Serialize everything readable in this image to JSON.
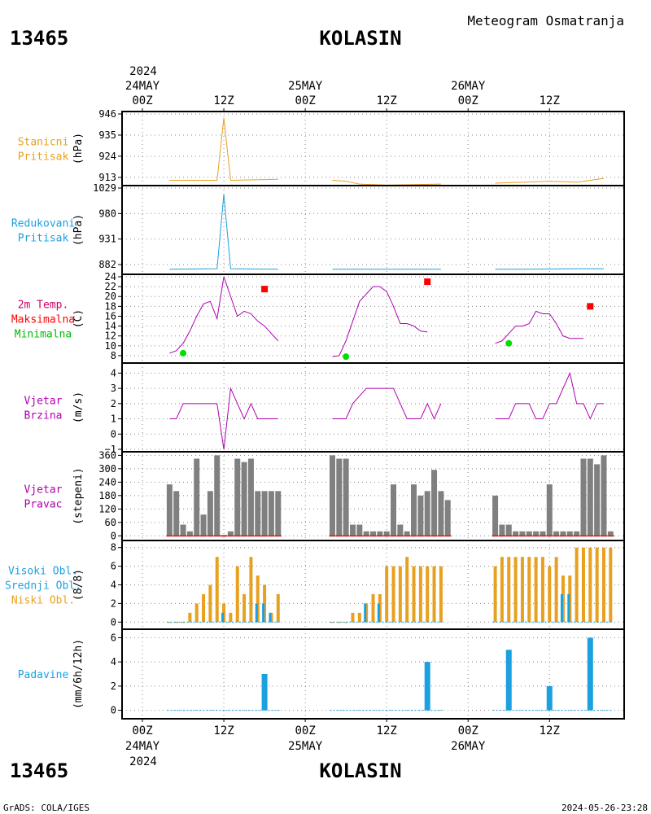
{
  "station": {
    "id": "13465",
    "name": "KOLASIN"
  },
  "header": {
    "title": "Meteogram Osmatranja"
  },
  "footer": {
    "left": "GrADS: COLA/IGES",
    "right": "2024-05-26-23:28"
  },
  "colors": {
    "pressure_station": "#e8a020",
    "pressure_reduced": "#1ba0e0",
    "temperature": "#b000b0",
    "max_temp": "#ff0000",
    "min_temp": "#00dd00",
    "wind": "#b000b0",
    "wind_dir_bar": "#808080",
    "low_cloud": "#e8a020",
    "mid_cloud": "#1ba0e0",
    "precip": "#1ba0e0"
  },
  "time_axis": {
    "top_year": "2024",
    "bottom_year": "2024",
    "labels": [
      {
        "t": 0,
        "hour": "00Z",
        "date": "24MAY"
      },
      {
        "t": 12,
        "hour": "12Z",
        "date": ""
      },
      {
        "t": 24,
        "hour": "00Z",
        "date": "25MAY"
      },
      {
        "t": 36,
        "hour": "12Z",
        "date": ""
      },
      {
        "t": 48,
        "hour": "00Z",
        "date": "26MAY"
      },
      {
        "t": 60,
        "hour": "12Z",
        "date": ""
      }
    ]
  },
  "panels": [
    {
      "key": "station_pressure",
      "labels": [
        "Stanicni",
        "Pritisak"
      ],
      "label_colors": [
        "#e8a020",
        "#e8a020"
      ],
      "unit": "(hPa)",
      "yticks": [
        "946",
        "935",
        "924",
        "913"
      ]
    },
    {
      "key": "reduced_pressure",
      "labels": [
        "Redukovani",
        "Pritisak"
      ],
      "label_colors": [
        "#1ba0e0",
        "#1ba0e0"
      ],
      "unit": "(hPa)",
      "yticks": [
        "1029",
        "980",
        "931",
        "882"
      ]
    },
    {
      "key": "temperature",
      "labels": [
        "2m Temp.",
        "Maksimalna",
        "Minimalna"
      ],
      "label_colors": [
        "#cc0066",
        "#ff0000",
        "#00bb00"
      ],
      "unit": "(C)",
      "yticks": [
        "24",
        "22",
        "20",
        "18",
        "16",
        "14",
        "12",
        "10",
        "8"
      ]
    },
    {
      "key": "wind_speed",
      "labels": [
        "Vjetar",
        "Brzina"
      ],
      "label_colors": [
        "#b000b0",
        "#b000b0"
      ],
      "unit": "(m/s)",
      "yticks": [
        "4",
        "3",
        "2",
        "1",
        "0",
        "−1"
      ]
    },
    {
      "key": "wind_direction",
      "labels": [
        "Vjetar",
        "Pravac"
      ],
      "label_colors": [
        "#b000b0",
        "#b000b0"
      ],
      "unit": "(stepeni)",
      "yticks": [
        "360",
        "300",
        "240",
        "180",
        "120",
        "60",
        "0"
      ]
    },
    {
      "key": "clouds",
      "labels": [
        "Visoki Obl.",
        "Srednji Obl.",
        "Niski Obl."
      ],
      "label_colors": [
        "#1ba0e0",
        "#1ba0e0",
        "#e8a020"
      ],
      "unit": "(8/8)",
      "yticks": [
        "8",
        "6",
        "4",
        "2",
        "0"
      ]
    },
    {
      "key": "precipitation",
      "labels": [
        "Padavine"
      ],
      "label_colors": [
        "#1ba0e0"
      ],
      "unit": "(mm/6h/12h)",
      "yticks": [
        "6",
        "4",
        "2",
        "0"
      ]
    }
  ],
  "chart_data": {
    "type": "line",
    "x_unit": "hours since 2024-05-24 00Z",
    "x_range": [
      -3,
      71
    ],
    "series": [
      {
        "panel": "station_pressure",
        "kind": "line",
        "ylim": [
          910,
          946
        ],
        "segments": [
          [
            [
              4,
              911.5
            ],
            [
              11,
              911.5
            ],
            [
              12,
              944
            ],
            [
              13,
              911.5
            ],
            [
              20,
              912
            ]
          ],
          [
            [
              28,
              911.5
            ],
            [
              30,
              911
            ],
            [
              32,
              909.5
            ],
            [
              36,
              909
            ],
            [
              44,
              909.5
            ]
          ],
          [
            [
              52,
              910
            ],
            [
              56,
              910.5
            ],
            [
              60,
              911
            ],
            [
              64,
              910.5
            ],
            [
              68,
              912.5
            ]
          ]
        ]
      },
      {
        "panel": "reduced_pressure",
        "kind": "line",
        "ylim": [
          868,
          1029
        ],
        "segments": [
          [
            [
              4,
              873
            ],
            [
              11,
              874
            ],
            [
              12,
              1017
            ],
            [
              13,
              874
            ],
            [
              20,
              873
            ]
          ],
          [
            [
              28,
              873
            ],
            [
              44,
              873
            ]
          ],
          [
            [
              52,
              873
            ],
            [
              56,
              873
            ],
            [
              64,
              874
            ],
            [
              68,
              874
            ]
          ]
        ]
      },
      {
        "panel": "temperature",
        "kind": "line",
        "ylim": [
          7,
          24
        ],
        "segments": [
          [
            [
              4,
              8.5
            ],
            [
              5,
              9
            ],
            [
              6,
              10.5
            ],
            [
              7,
              13
            ],
            [
              8,
              16
            ],
            [
              9,
              18.5
            ],
            [
              10,
              19
            ],
            [
              11,
              15.5
            ],
            [
              12,
              24
            ],
            [
              13,
              20
            ],
            [
              14,
              16
            ],
            [
              15,
              17
            ],
            [
              16,
              16.5
            ],
            [
              17,
              15
            ],
            [
              18,
              14
            ],
            [
              19,
              12.5
            ],
            [
              20,
              11
            ]
          ],
          [
            [
              28,
              7.8
            ],
            [
              29,
              8
            ],
            [
              30,
              11
            ],
            [
              31,
              15
            ],
            [
              32,
              19
            ],
            [
              33,
              20.5
            ],
            [
              34,
              22
            ],
            [
              35,
              22
            ],
            [
              36,
              21
            ],
            [
              37,
              18
            ],
            [
              38,
              14.5
            ],
            [
              39,
              14.5
            ],
            [
              40,
              14
            ],
            [
              41,
              13
            ],
            [
              42,
              12.8
            ]
          ],
          [
            [
              52,
              10.5
            ],
            [
              53,
              11
            ],
            [
              54,
              12.5
            ],
            [
              55,
              14
            ],
            [
              56,
              14
            ],
            [
              57,
              14.5
            ],
            [
              58,
              17
            ],
            [
              59,
              16.5
            ],
            [
              60,
              16.5
            ],
            [
              61,
              14.5
            ],
            [
              62,
              12
            ],
            [
              63,
              11.5
            ],
            [
              64,
              11.5
            ],
            [
              65,
              11.5
            ]
          ]
        ]
      },
      {
        "panel": "temperature",
        "kind": "max_markers",
        "points": [
          [
            18,
            21.5
          ],
          [
            42,
            23
          ],
          [
            66,
            18
          ]
        ]
      },
      {
        "panel": "temperature",
        "kind": "min_markers",
        "points": [
          [
            6,
            8.5
          ],
          [
            30,
            7.8
          ],
          [
            54,
            10.5
          ]
        ]
      },
      {
        "panel": "wind_speed",
        "kind": "line",
        "ylim": [
          -1,
          4.5
        ],
        "segments": [
          [
            [
              4,
              1
            ],
            [
              5,
              1
            ],
            [
              6,
              2
            ],
            [
              7,
              2
            ],
            [
              8,
              2
            ],
            [
              9,
              2
            ],
            [
              10,
              2
            ],
            [
              11,
              2
            ],
            [
              12,
              -1
            ],
            [
              13,
              3
            ],
            [
              14,
              2
            ],
            [
              15,
              1
            ],
            [
              16,
              2
            ],
            [
              17,
              1
            ],
            [
              18,
              1
            ],
            [
              19,
              1
            ],
            [
              20,
              1
            ]
          ],
          [
            [
              28,
              1
            ],
            [
              29,
              1
            ],
            [
              30,
              1
            ],
            [
              31,
              2
            ],
            [
              32,
              2.5
            ],
            [
              33,
              3
            ],
            [
              34,
              3
            ],
            [
              35,
              3
            ],
            [
              36,
              3
            ],
            [
              37,
              3
            ],
            [
              38,
              2
            ],
            [
              39,
              1
            ],
            [
              40,
              1
            ],
            [
              41,
              1
            ],
            [
              42,
              2
            ],
            [
              43,
              1
            ],
            [
              44,
              2
            ]
          ],
          [
            [
              52,
              1
            ],
            [
              53,
              1
            ],
            [
              54,
              1
            ],
            [
              55,
              2
            ],
            [
              56,
              2
            ],
            [
              57,
              2
            ],
            [
              58,
              1
            ],
            [
              59,
              1
            ],
            [
              60,
              2
            ],
            [
              61,
              2
            ],
            [
              62,
              3
            ],
            [
              63,
              4
            ],
            [
              64,
              2
            ],
            [
              65,
              2
            ],
            [
              66,
              1
            ],
            [
              67,
              2
            ],
            [
              68,
              2
            ]
          ]
        ]
      },
      {
        "panel": "wind_direction",
        "kind": "bars",
        "ylim": [
          -10,
          365
        ],
        "points": [
          [
            4,
            230
          ],
          [
            5,
            200
          ],
          [
            6,
            50
          ],
          [
            7,
            20
          ],
          [
            8,
            345
          ],
          [
            9,
            95
          ],
          [
            10,
            200
          ],
          [
            11,
            360
          ],
          [
            12,
            0
          ],
          [
            13,
            20
          ],
          [
            14,
            345
          ],
          [
            15,
            330
          ],
          [
            16,
            345
          ],
          [
            17,
            200
          ],
          [
            18,
            200
          ],
          [
            19,
            200
          ],
          [
            20,
            200
          ],
          [
            28,
            360
          ],
          [
            29,
            345
          ],
          [
            30,
            345
          ],
          [
            31,
            50
          ],
          [
            32,
            50
          ],
          [
            33,
            20
          ],
          [
            34,
            20
          ],
          [
            35,
            20
          ],
          [
            36,
            20
          ],
          [
            37,
            230
          ],
          [
            38,
            50
          ],
          [
            39,
            20
          ],
          [
            40,
            230
          ],
          [
            41,
            180
          ],
          [
            42,
            200
          ],
          [
            43,
            295
          ],
          [
            44,
            200
          ],
          [
            45,
            160
          ],
          [
            52,
            180
          ],
          [
            53,
            50
          ],
          [
            54,
            50
          ],
          [
            55,
            20
          ],
          [
            56,
            20
          ],
          [
            57,
            20
          ],
          [
            58,
            20
          ],
          [
            59,
            20
          ],
          [
            60,
            230
          ],
          [
            61,
            20
          ],
          [
            62,
            20
          ],
          [
            63,
            20
          ],
          [
            64,
            20
          ],
          [
            65,
            345
          ],
          [
            66,
            345
          ],
          [
            67,
            320
          ],
          [
            68,
            360
          ],
          [
            69,
            20
          ]
        ]
      },
      {
        "panel": "clouds",
        "kind": "low_cloud",
        "ylim": [
          -0.5,
          8.5
        ],
        "points": [
          [
            4,
            0
          ],
          [
            5,
            0
          ],
          [
            6,
            0
          ],
          [
            7,
            1
          ],
          [
            8,
            2
          ],
          [
            9,
            3
          ],
          [
            10,
            4
          ],
          [
            11,
            7
          ],
          [
            12,
            2
          ],
          [
            13,
            1
          ],
          [
            14,
            6
          ],
          [
            15,
            3
          ],
          [
            16,
            7
          ],
          [
            17,
            5
          ],
          [
            18,
            4
          ],
          [
            19,
            1
          ],
          [
            20,
            3
          ],
          [
            28,
            0
          ],
          [
            29,
            0
          ],
          [
            30,
            0
          ],
          [
            31,
            1
          ],
          [
            32,
            1
          ],
          [
            33,
            2
          ],
          [
            34,
            3
          ],
          [
            35,
            3
          ],
          [
            36,
            6
          ],
          [
            37,
            6
          ],
          [
            38,
            6
          ],
          [
            39,
            7
          ],
          [
            40,
            6
          ],
          [
            41,
            6
          ],
          [
            42,
            6
          ],
          [
            43,
            6
          ],
          [
            44,
            6
          ],
          [
            52,
            6
          ],
          [
            53,
            7
          ],
          [
            54,
            7
          ],
          [
            55,
            7
          ],
          [
            56,
            7
          ],
          [
            57,
            7
          ],
          [
            58,
            7
          ],
          [
            59,
            7
          ],
          [
            60,
            6
          ],
          [
            61,
            7
          ],
          [
            62,
            5
          ],
          [
            63,
            5
          ],
          [
            64,
            8
          ],
          [
            65,
            8
          ],
          [
            66,
            8
          ],
          [
            67,
            8
          ],
          [
            68,
            8
          ],
          [
            69,
            8
          ]
        ]
      },
      {
        "panel": "clouds",
        "kind": "mid_cloud",
        "points": [
          [
            12,
            1
          ],
          [
            17,
            2
          ],
          [
            18,
            2
          ],
          [
            19,
            1
          ],
          [
            33,
            2
          ],
          [
            35,
            2
          ],
          [
            62,
            3
          ],
          [
            63,
            3
          ]
        ]
      },
      {
        "panel": "precipitation",
        "kind": "bars",
        "ylim": [
          -0.5,
          6.5
        ],
        "points": [
          [
            18,
            3
          ],
          [
            42,
            4
          ],
          [
            54,
            5
          ],
          [
            60,
            2
          ],
          [
            66,
            6
          ]
        ]
      }
    ]
  }
}
